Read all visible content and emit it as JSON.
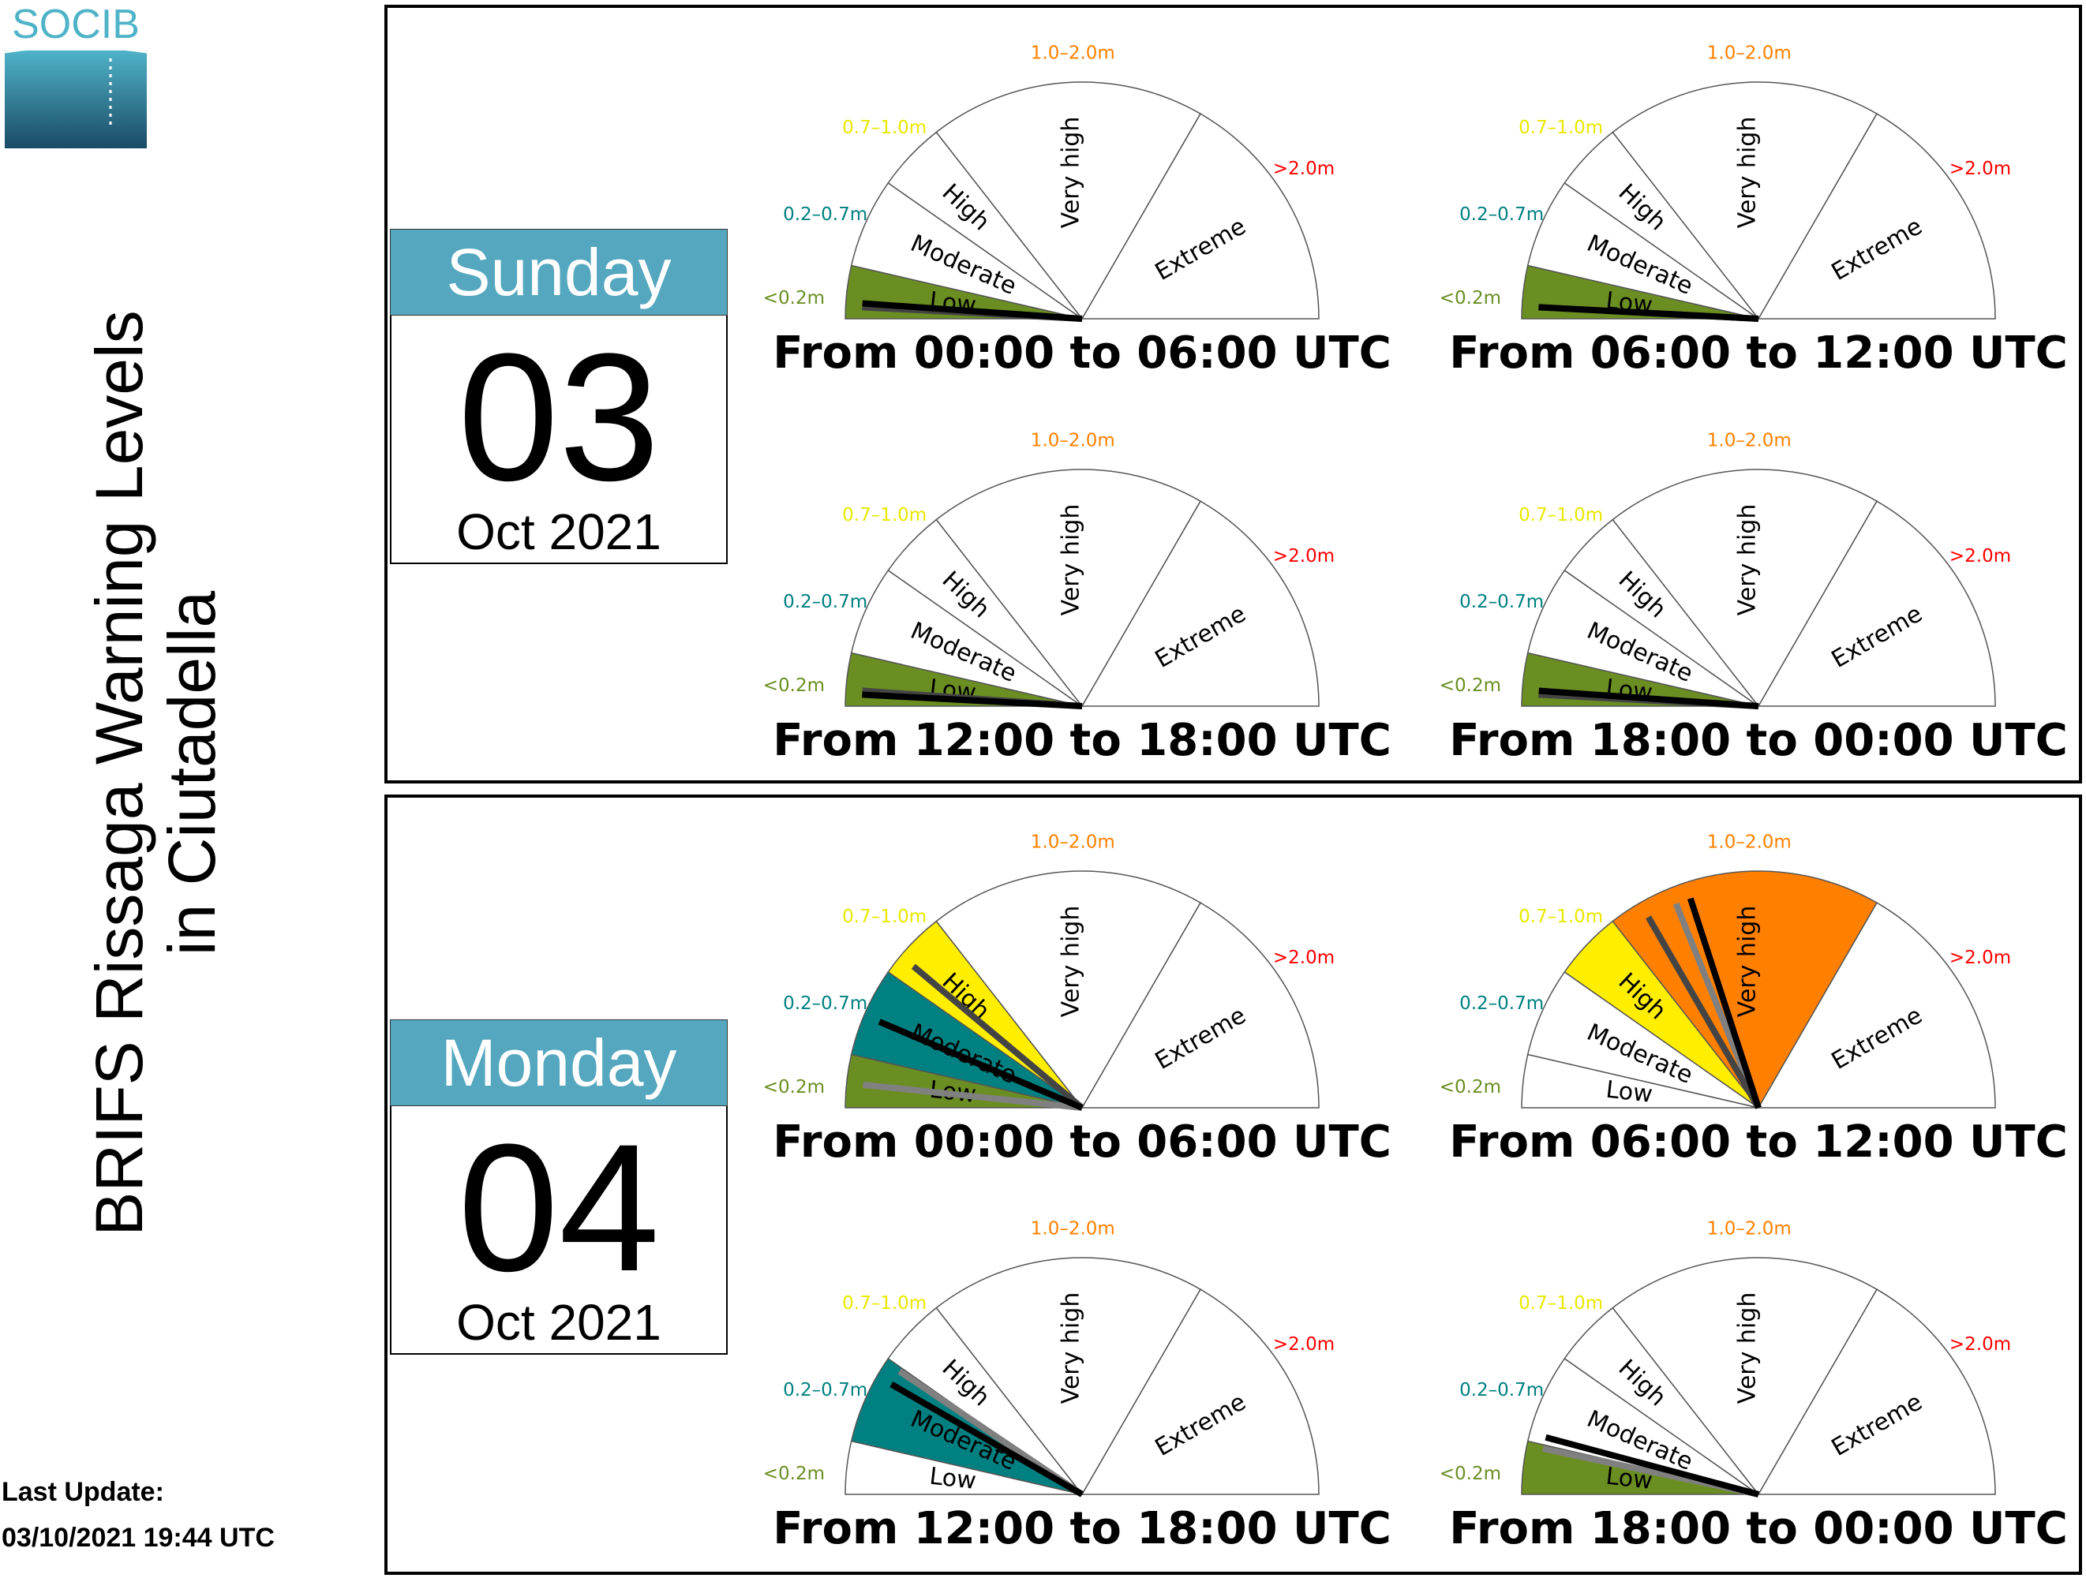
{
  "logo": {
    "text": "SOCIB"
  },
  "title": {
    "line1": "BRIFS Rissaga Warning Levels",
    "line2": "in Ciutadella"
  },
  "last_update": {
    "label": "Last Update:",
    "value": "03/10/2021 19:44 UTC"
  },
  "levels": [
    {
      "name": "Low",
      "range": "<0.2m",
      "color": "#6b8e23",
      "range_color": "#6b8e23"
    },
    {
      "name": "Moderate",
      "range": "0.2–0.7m",
      "color": "#008080",
      "range_color": "#008080"
    },
    {
      "name": "High",
      "range": "0.7–1.0m",
      "color": "#ffee00",
      "range_color": "#e8e800"
    },
    {
      "name": "Very high",
      "range": "1.0–2.0m",
      "color": "#ff8000",
      "range_color": "#ff8000"
    },
    {
      "name": "Extreme",
      "range": ">2.0m",
      "color": "#ff0000",
      "range_color": "#ff0000"
    }
  ],
  "days": [
    {
      "weekday": "Sunday",
      "day": "03",
      "month_year": "Oct 2021",
      "periods": [
        {
          "label": "From 00:00 to 06:00 UTC",
          "filled": [
            "Low"
          ],
          "needles": [
            {
              "deg": 177,
              "shade": "#444444"
            },
            {
              "deg": 176,
              "shade": "#000000"
            }
          ]
        },
        {
          "label": "From 06:00 to 12:00 UTC",
          "filled": [
            "Low"
          ],
          "needles": [
            {
              "deg": 177,
              "shade": "#444444"
            },
            {
              "deg": 177,
              "shade": "#000000"
            }
          ]
        },
        {
          "label": "From 12:00 to 18:00 UTC",
          "filled": [
            "Low"
          ],
          "needles": [
            {
              "deg": 176,
              "shade": "#444444"
            },
            {
              "deg": 177,
              "shade": "#000000"
            }
          ]
        },
        {
          "label": "From 18:00 to 00:00 UTC",
          "filled": [
            "Low"
          ],
          "needles": [
            {
              "deg": 177,
              "shade": "#444444"
            },
            {
              "deg": 176,
              "shade": "#000000"
            }
          ]
        }
      ]
    },
    {
      "weekday": "Monday",
      "day": "04",
      "month_year": "Oct 2021",
      "periods": [
        {
          "label": "From 00:00 to 06:00 UTC",
          "filled": [
            "Low",
            "Moderate",
            "High"
          ],
          "needles": [
            {
              "deg": 174,
              "shade": "#808080"
            },
            {
              "deg": 140,
              "shade": "#444444"
            },
            {
              "deg": 157,
              "shade": "#000000"
            }
          ]
        },
        {
          "label": "From 06:00 to 12:00 UTC",
          "filled": [
            "High",
            "Very high"
          ],
          "needles": [
            {
              "deg": 112,
              "shade": "#808080"
            },
            {
              "deg": 120,
              "shade": "#444444"
            },
            {
              "deg": 108,
              "shade": "#000000"
            }
          ]
        },
        {
          "label": "From 12:00 to 18:00 UTC",
          "filled": [
            "Moderate"
          ],
          "needles": [
            {
              "deg": 146,
              "shade": "#808080"
            },
            {
              "deg": 150,
              "shade": "#000000"
            }
          ]
        },
        {
          "label": "From 18:00 to 00:00 UTC",
          "filled": [
            "Low"
          ],
          "needles": [
            {
              "deg": 168,
              "shade": "#808080"
            },
            {
              "deg": 165,
              "shade": "#000000"
            }
          ]
        }
      ]
    }
  ]
}
